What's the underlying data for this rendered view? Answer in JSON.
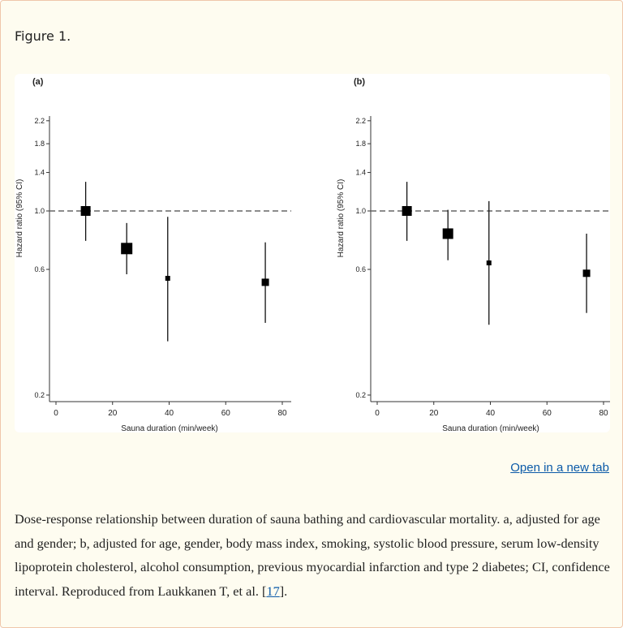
{
  "figure_title": "Figure 1.",
  "open_link": "Open in a new tab",
  "caption": {
    "text": "Dose-response relationship between duration of sauna bathing and cardiovascular mortality. a, adjusted for age and gender; b, adjusted for age, gender, body mass index, smoking, systolic blood pressure, serum low-density lipoprotein cholesterol, alcohol consumption, previous myocardial infarction and type 2 diabetes; CI, confidence interval. Reproduced from Laukkanen T, et al. [",
    "ref": "17",
    "end": "]."
  },
  "chart_data": [
    {
      "type": "scatter",
      "panel_label": "(a)",
      "xlabel": "Sauna duration (min/week)",
      "ylabel": "Hazard ratio (95% CI)",
      "xlim": [
        0,
        80
      ],
      "xticks": [
        "0",
        "20",
        "40",
        "60",
        "80"
      ],
      "ylim": [
        0.2,
        2.2
      ],
      "yscale": "log",
      "yticks": [
        "0.2",
        "0.6",
        "1.0",
        "1.4",
        "1.8",
        "2.2"
      ],
      "reference_line": 1.0,
      "points": [
        {
          "x": 10.5,
          "y": 1.0,
          "ci_low": 0.77,
          "ci_high": 1.29,
          "weight": 12
        },
        {
          "x": 25,
          "y": 0.72,
          "ci_low": 0.575,
          "ci_high": 0.9,
          "weight": 14
        },
        {
          "x": 39.5,
          "y": 0.555,
          "ci_low": 0.32,
          "ci_high": 0.95,
          "weight": 6
        },
        {
          "x": 74,
          "y": 0.536,
          "ci_low": 0.376,
          "ci_high": 0.76,
          "weight": 9
        }
      ]
    },
    {
      "type": "scatter",
      "panel_label": "(b)",
      "xlabel": "Sauna duration (min/week)",
      "ylabel": "Hazard ratio (95% CI)",
      "xlim": [
        0,
        80
      ],
      "xticks": [
        "0",
        "20",
        "40",
        "60",
        "80"
      ],
      "ylim": [
        0.2,
        2.2
      ],
      "yscale": "log",
      "yticks": [
        "0.2",
        "0.6",
        "1.0",
        "1.4",
        "1.8",
        "2.2"
      ],
      "reference_line": 1.0,
      "points": [
        {
          "x": 10.5,
          "y": 1.0,
          "ci_low": 0.77,
          "ci_high": 1.29,
          "weight": 12
        },
        {
          "x": 25,
          "y": 0.82,
          "ci_low": 0.65,
          "ci_high": 1.01,
          "weight": 13
        },
        {
          "x": 39.5,
          "y": 0.635,
          "ci_low": 0.37,
          "ci_high": 1.09,
          "weight": 6
        },
        {
          "x": 74,
          "y": 0.58,
          "ci_low": 0.41,
          "ci_high": 0.82,
          "weight": 9
        }
      ]
    }
  ]
}
